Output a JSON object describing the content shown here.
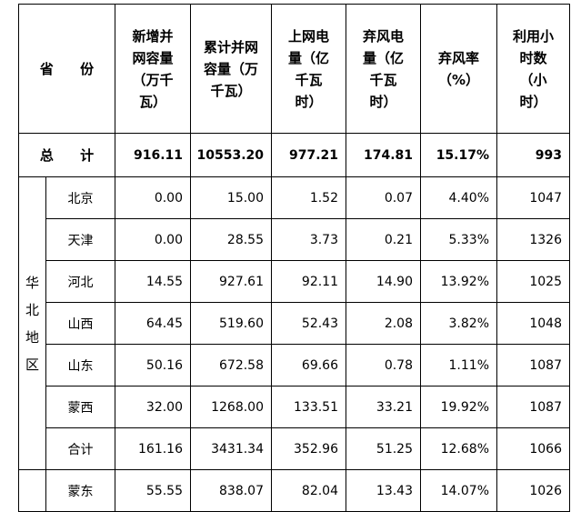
{
  "header": {
    "province": "省 份",
    "new_capacity": [
      "新增并",
      "网容量",
      "（万千",
      "瓦）"
    ],
    "cum_capacity": [
      "累计并网",
      "容量（万",
      "千瓦）"
    ],
    "grid_power": [
      "上网电",
      "量（亿",
      "千瓦",
      "时）"
    ],
    "curtailed_power": [
      "弃风电",
      "量（亿",
      "千瓦",
      "时）"
    ],
    "curtail_rate": [
      "弃风率",
      "（%）"
    ],
    "hours": [
      "利用小",
      "时数",
      "（小",
      "时）"
    ]
  },
  "total": {
    "label": "总 计",
    "values": [
      "916.11",
      "10553.20",
      "977.21",
      "174.81",
      "15.17%",
      "993"
    ]
  },
  "north_china": {
    "region_chars": [
      "华",
      "北",
      "地",
      "区"
    ],
    "rows": [
      {
        "name": "北京",
        "values": [
          "0.00",
          "15.00",
          "1.52",
          "0.07",
          "4.40%",
          "1047"
        ]
      },
      {
        "name": "天津",
        "values": [
          "0.00",
          "28.55",
          "3.73",
          "0.21",
          "5.33%",
          "1326"
        ]
      },
      {
        "name": "河北",
        "values": [
          "14.55",
          "927.61",
          "92.11",
          "14.90",
          "13.92%",
          "1025"
        ]
      },
      {
        "name": "山西",
        "values": [
          "64.45",
          "519.60",
          "52.43",
          "2.08",
          "3.82%",
          "1048"
        ]
      },
      {
        "name": "山东",
        "values": [
          "50.16",
          "672.58",
          "69.66",
          "0.78",
          "1.11%",
          "1087"
        ]
      },
      {
        "name": "蒙西",
        "values": [
          "32.00",
          "1268.00",
          "133.51",
          "33.21",
          "19.92%",
          "1087"
        ]
      },
      {
        "name": "合计",
        "values": [
          "161.16",
          "3431.34",
          "352.96",
          "51.25",
          "12.68%",
          "1066"
        ]
      }
    ]
  },
  "next_region": {
    "rows": [
      {
        "name": "蒙东",
        "values": [
          "55.55",
          "838.07",
          "82.04",
          "13.43",
          "14.07%",
          "1026"
        ]
      }
    ]
  }
}
